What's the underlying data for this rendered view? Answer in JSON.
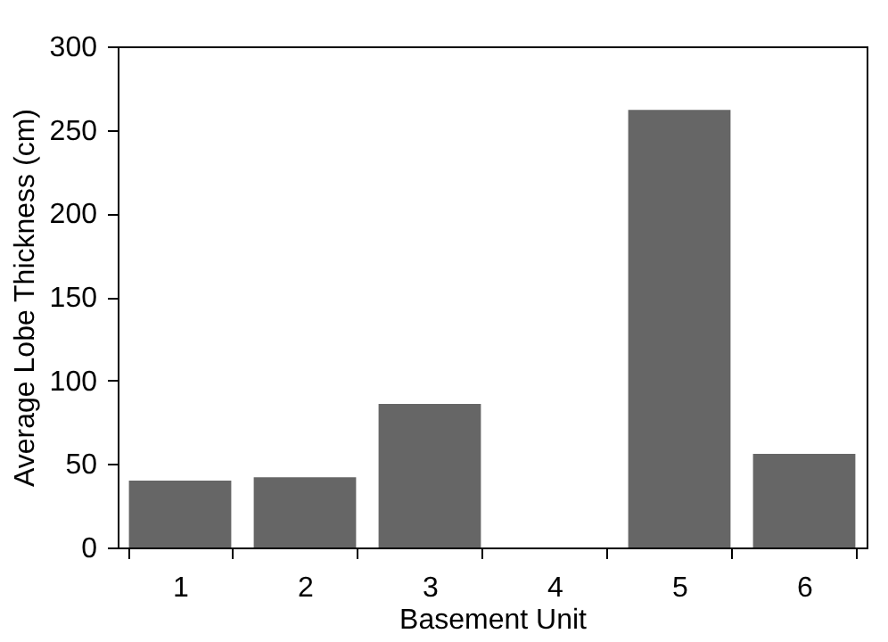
{
  "chart_data": {
    "type": "bar",
    "xlabel": "Basement Unit",
    "ylabel": "Average Lobe Thickness (cm)",
    "categories": [
      "1",
      "2",
      "3",
      "4",
      "5",
      "6"
    ],
    "values": [
      40,
      42,
      86,
      0,
      262,
      56
    ],
    "color": "#666666",
    "ylim": [
      0,
      300
    ],
    "yticks": [
      0,
      50,
      100,
      150,
      200,
      250,
      300
    ],
    "grid": false
  }
}
